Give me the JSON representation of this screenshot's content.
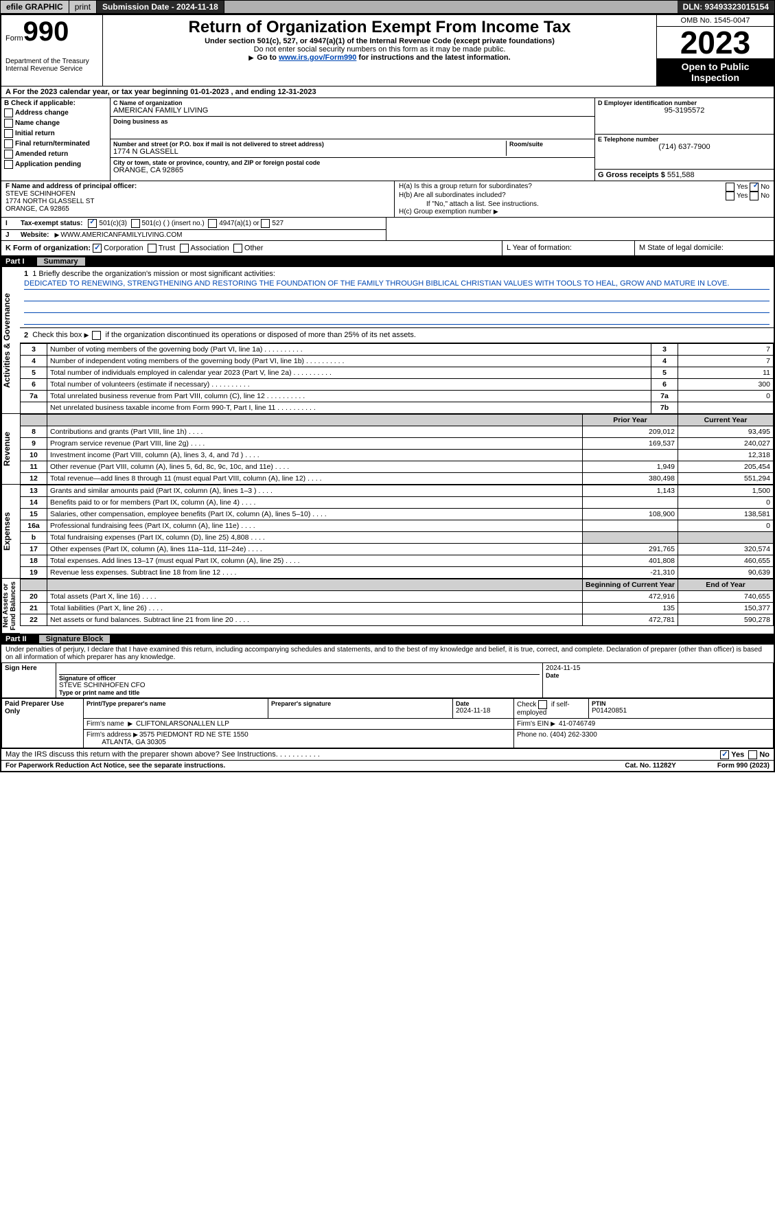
{
  "topbar": {
    "efile": "efile GRAPHIC",
    "print": "print",
    "submission": "Submission Date - 2024-11-18",
    "dln": "DLN: 93493323015154"
  },
  "header": {
    "form": "Form",
    "form_no": "990",
    "title": "Return of Organization Exempt From Income Tax",
    "sub1": "Under section 501(c), 527, or 4947(a)(1) of the Internal Revenue Code (except private foundations)",
    "sub2": "Do not enter social security numbers on this form as it may be made public.",
    "goto_pre": "Go to ",
    "goto_link": "www.irs.gov/Form990",
    "goto_post": " for instructions and the latest information.",
    "dept": "Department of the Treasury\nInternal Revenue Service",
    "omb": "OMB No. 1545-0047",
    "year": "2023",
    "open": "Open to Public Inspection"
  },
  "a_line": "A For the 2023 calendar year, or tax year beginning 01-01-2023    , and ending 12-31-2023",
  "box_b": {
    "title": "B Check if applicable:",
    "opts": [
      "Address change",
      "Name change",
      "Initial return",
      "Final return/terminated",
      "Amended return",
      "Application pending"
    ]
  },
  "box_c": {
    "name_lbl": "C Name of organization",
    "name": "AMERICAN FAMILY LIVING",
    "dba_lbl": "Doing business as",
    "dba": "",
    "addr_lbl": "Number and street (or P.O. box if mail is not delivered to street address)",
    "room_lbl": "Room/suite",
    "addr": "1774 N GLASSELL",
    "city_lbl": "City or town, state or province, country, and ZIP or foreign postal code",
    "city": "ORANGE, CA  92865"
  },
  "box_d": {
    "lbl": "D Employer identification number",
    "val": "95-3195572"
  },
  "box_e": {
    "lbl": "E Telephone number",
    "val": "(714) 637-7900"
  },
  "box_g": {
    "lbl": "G Gross receipts $",
    "val": "551,588"
  },
  "box_f": {
    "lbl": "F Name and address of principal officer:",
    "name": "STEVE SCHINHOFEN",
    "addr1": "1774 NORTH GLASSELL ST",
    "addr2": "ORANGE, CA  92865"
  },
  "box_h": {
    "ha": "H(a)  Is this a group return for subordinates?",
    "hb": "H(b)  Are all subordinates included?",
    "hb_note": "If \"No,\" attach a list. See instructions.",
    "hc": "H(c)  Group exemption number",
    "yes": "Yes",
    "no": "No"
  },
  "box_i": {
    "lbl": "Tax-exempt status:",
    "o1": "501(c)(3)",
    "o2": "501(c) (  ) (insert no.)",
    "o3": "4947(a)(1) or",
    "o4": "527"
  },
  "box_j": {
    "lbl": "Website:",
    "val": "WWW.AMERICANFAMILYLIVING.COM"
  },
  "box_k": {
    "lbl": "K Form of organization:",
    "o1": "Corporation",
    "o2": "Trust",
    "o3": "Association",
    "o4": "Other"
  },
  "box_l": "L Year of formation:",
  "box_m": "M State of legal domicile:",
  "part1": {
    "label": "Part I",
    "title": "Summary"
  },
  "side_labels": {
    "ag": "Activities & Governance",
    "rev": "Revenue",
    "exp": "Expenses",
    "na": "Net Assets or\nFund Balances"
  },
  "mission": {
    "q": "1  Briefly describe the organization's mission or most significant activities:",
    "text": "DEDICATED TO RENEWING, STRENGTHENING AND RESTORING THE FOUNDATION OF THE FAMILY THROUGH BIBLICAL CHRISTIAN VALUES WITH TOOLS TO HEAL, GROW AND MATURE IN LOVE."
  },
  "line2": "Check this box        if the organization discontinued its operations or disposed of more than 25% of its net assets.",
  "rows_ag": [
    {
      "n": "3",
      "t": "Number of voting members of the governing body (Part VI, line 1a)",
      "nc": "3",
      "v": "7"
    },
    {
      "n": "4",
      "t": "Number of independent voting members of the governing body (Part VI, line 1b)",
      "nc": "4",
      "v": "7"
    },
    {
      "n": "5",
      "t": "Total number of individuals employed in calendar year 2023 (Part V, line 2a)",
      "nc": "5",
      "v": "11"
    },
    {
      "n": "6",
      "t": "Total number of volunteers (estimate if necessary)",
      "nc": "6",
      "v": "300"
    },
    {
      "n": "7a",
      "t": "Total unrelated business revenue from Part VIII, column (C), line 12",
      "nc": "7a",
      "v": "0"
    },
    {
      "n": "",
      "t": "Net unrelated business taxable income from Form 990-T, Part I, line 11",
      "nc": "7b",
      "v": ""
    }
  ],
  "hdr_py": "Prior Year",
  "hdr_cy": "Current Year",
  "rows_rev": [
    {
      "n": "8",
      "t": "Contributions and grants (Part VIII, line 1h)",
      "py": "209,012",
      "cy": "93,495"
    },
    {
      "n": "9",
      "t": "Program service revenue (Part VIII, line 2g)",
      "py": "169,537",
      "cy": "240,027"
    },
    {
      "n": "10",
      "t": "Investment income (Part VIII, column (A), lines 3, 4, and 7d )",
      "py": "",
      "cy": "12,318"
    },
    {
      "n": "11",
      "t": "Other revenue (Part VIII, column (A), lines 5, 6d, 8c, 9c, 10c, and 11e)",
      "py": "1,949",
      "cy": "205,454"
    },
    {
      "n": "12",
      "t": "Total revenue—add lines 8 through 11 (must equal Part VIII, column (A), line 12)",
      "py": "380,498",
      "cy": "551,294"
    }
  ],
  "rows_exp": [
    {
      "n": "13",
      "t": "Grants and similar amounts paid (Part IX, column (A), lines 1–3 )",
      "py": "1,143",
      "cy": "1,500"
    },
    {
      "n": "14",
      "t": "Benefits paid to or for members (Part IX, column (A), line 4)",
      "py": "",
      "cy": "0"
    },
    {
      "n": "15",
      "t": "Salaries, other compensation, employee benefits (Part IX, column (A), lines 5–10)",
      "py": "108,900",
      "cy": "138,581"
    },
    {
      "n": "16a",
      "t": "Professional fundraising fees (Part IX, column (A), line 11e)",
      "py": "",
      "cy": "0"
    },
    {
      "n": "b",
      "t": "Total fundraising expenses (Part IX, column (D), line 25) 4,808",
      "py": "grey",
      "cy": "grey"
    },
    {
      "n": "17",
      "t": "Other expenses (Part IX, column (A), lines 11a–11d, 11f–24e)",
      "py": "291,765",
      "cy": "320,574"
    },
    {
      "n": "18",
      "t": "Total expenses. Add lines 13–17 (must equal Part IX, column (A), line 25)",
      "py": "401,808",
      "cy": "460,655"
    },
    {
      "n": "19",
      "t": "Revenue less expenses. Subtract line 18 from line 12",
      "py": "-21,310",
      "cy": "90,639"
    }
  ],
  "hdr_bcy": "Beginning of Current Year",
  "hdr_eoy": "End of Year",
  "rows_na": [
    {
      "n": "20",
      "t": "Total assets (Part X, line 16)",
      "py": "472,916",
      "cy": "740,655"
    },
    {
      "n": "21",
      "t": "Total liabilities (Part X, line 26)",
      "py": "135",
      "cy": "150,377"
    },
    {
      "n": "22",
      "t": "Net assets or fund balances. Subtract line 21 from line 20",
      "py": "472,781",
      "cy": "590,278"
    }
  ],
  "part2": {
    "label": "Part II",
    "title": "Signature Block"
  },
  "penalty": "Under penalties of perjury, I declare that I have examined this return, including accompanying schedules and statements, and to the best of my knowledge and belief, it is true, correct, and complete. Declaration of preparer (other than officer) is based on all information of which preparer has any knowledge.",
  "sign": {
    "here": "Sign Here",
    "sig_lbl": "Signature of officer",
    "officer": "STEVE SCHINHOFEN  CFO",
    "type_lbl": "Type or print name and title",
    "date_lbl": "Date",
    "date": "2024-11-15"
  },
  "paid": {
    "title": "Paid Preparer Use Only",
    "name_lbl": "Print/Type preparer's name",
    "sig_lbl": "Preparer's signature",
    "date_lbl": "Date",
    "date": "2024-11-18",
    "check_lbl": "Check        if self-employed",
    "ptin_lbl": "PTIN",
    "ptin": "P01420851",
    "firm_name_lbl": "Firm's name",
    "firm_name": "CLIFTONLARSONALLEN LLP",
    "firm_ein_lbl": "Firm's EIN",
    "firm_ein": "41-0746749",
    "firm_addr_lbl": "Firm's address",
    "firm_addr1": "3575 PIEDMONT RD NE STE 1550",
    "firm_addr2": "ATLANTA, GA  30305",
    "phone_lbl": "Phone no.",
    "phone": "(404) 262-3300"
  },
  "discuss": "May the IRS discuss this return with the preparer shown above? See Instructions.",
  "footer": {
    "l": "For Paperwork Reduction Act Notice, see the separate instructions.",
    "c": "Cat. No. 11282Y",
    "r": "Form 990 (2023)"
  }
}
